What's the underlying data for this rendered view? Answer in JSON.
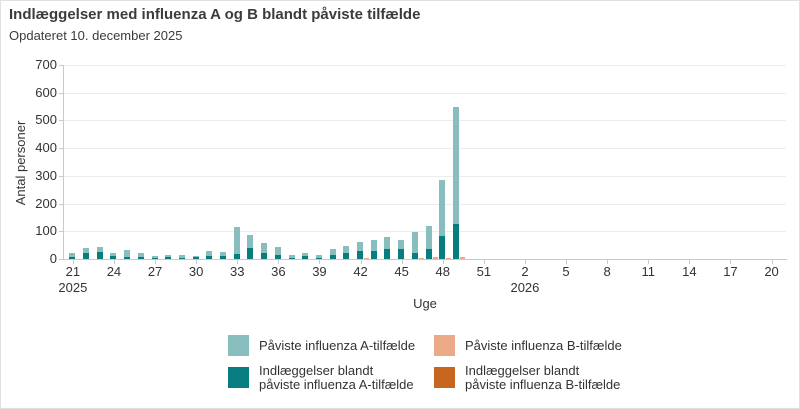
{
  "header": {
    "title": "Indlæggelser med influenza A og B blandt påviste tilfælde",
    "subtitle": "Opdateret 10. december 2025"
  },
  "chart_data": {
    "type": "bar",
    "title": "Indlæggelser med influenza A og B blandt påviste tilfælde",
    "subtitle": "Opdateret 10. december 2025",
    "xlabel": "Uge",
    "ylabel": "Antal personer",
    "ylim": [
      0,
      700
    ],
    "yticks": [
      0,
      100,
      200,
      300,
      400,
      500,
      600,
      700
    ],
    "grid": "horizontal",
    "legend_position": "bottom",
    "x_axis": {
      "start_week_2025": 21,
      "end_week_2025": 52,
      "start_week_2026": 1,
      "end_week_2026": 20,
      "tick_every": 3,
      "tick_labels": [
        "21",
        "24",
        "27",
        "30",
        "33",
        "36",
        "39",
        "42",
        "45",
        "48",
        "51",
        "2",
        "5",
        "8",
        "11",
        "14",
        "17",
        "20"
      ],
      "year_labels": [
        {
          "label": "2025",
          "under_week": 21
        },
        {
          "label": "2026",
          "under_week": 2
        }
      ]
    },
    "weeks_2025": [
      21,
      22,
      23,
      24,
      25,
      26,
      27,
      28,
      29,
      30,
      31,
      32,
      33,
      34,
      35,
      36,
      37,
      38,
      39,
      40,
      41,
      42,
      43,
      44,
      45,
      46,
      47,
      48,
      49
    ],
    "series": [
      {
        "name": "Påviste influenza A-tilfælde",
        "color": "#89BEBE",
        "values": [
          20,
          38,
          44,
          20,
          34,
          21,
          10,
          16,
          15,
          12,
          28,
          24,
          115,
          88,
          56,
          42,
          16,
          23,
          15,
          35,
          47,
          60,
          68,
          80,
          68,
          97,
          120,
          285,
          550
        ]
      },
      {
        "name": "Indlæggelser blandt påviste influenza A-tilfælde",
        "color": "#077D7F",
        "values": [
          6,
          20,
          25,
          10,
          8,
          6,
          3,
          6,
          5,
          7,
          12,
          10,
          18,
          38,
          23,
          15,
          5,
          10,
          5,
          15,
          20,
          28,
          30,
          35,
          36,
          22,
          35,
          82,
          127
        ]
      },
      {
        "name": "Påviste influenza B-tilfælde",
        "color": "#EBA987",
        "values": [
          0,
          0,
          0,
          0,
          0,
          0,
          0,
          0,
          0,
          0,
          0,
          0,
          0,
          0,
          0,
          0,
          0,
          0,
          0,
          0,
          0,
          3,
          0,
          0,
          0,
          2,
          8,
          4,
          7
        ]
      },
      {
        "name": "Indlæggelser blandt påviste influenza B-tilfælde",
        "color": "#C7661F",
        "values": [
          0,
          0,
          0,
          0,
          0,
          0,
          0,
          0,
          0,
          0,
          0,
          0,
          0,
          0,
          0,
          0,
          0,
          0,
          0,
          0,
          0,
          0,
          0,
          0,
          0,
          0,
          0,
          0,
          0
        ]
      }
    ]
  },
  "legend": {
    "items": [
      {
        "color": "#89BEBE",
        "line1": "Påviste influenza A-tilfælde",
        "line2": ""
      },
      {
        "color": "#077D7F",
        "line1": "Indlæggelser blandt",
        "line2": "påviste influenza A-tilfælde"
      },
      {
        "color": "#EBA987",
        "line1": "Påviste influenza B-tilfælde",
        "line2": ""
      },
      {
        "color": "#C7661F",
        "line1": "Indlæggelser blandt",
        "line2": "påviste influenza B-tilfælde"
      }
    ]
  },
  "colors": {
    "influenza_A_cases": "#89BEBE",
    "influenza_A_admissions": "#077D7F",
    "influenza_B_cases": "#EBA987",
    "influenza_B_admissions": "#C7661F",
    "grid": "#ECECEC",
    "axis": "#C9C9C9",
    "text": "#333333"
  }
}
